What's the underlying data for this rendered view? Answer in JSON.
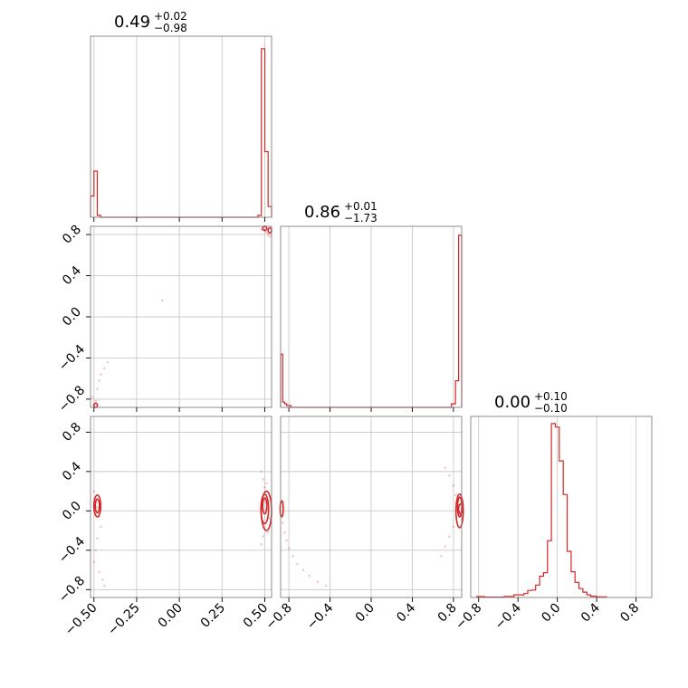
{
  "colors": {
    "series": "#d62728",
    "grid": "#c8c8c8",
    "frame": "#808080"
  },
  "chart_data": {
    "type": "corner",
    "titles": [
      {
        "value": "0.49",
        "plus": "+0.02",
        "minus": "−0.98"
      },
      {
        "value": "0.86",
        "plus": "+0.01",
        "minus": "−1.73"
      },
      {
        "value": "0.00",
        "plus": "+0.10",
        "minus": "−0.10"
      }
    ],
    "axes": [
      {
        "range": [
          -0.52,
          0.54
        ],
        "ticks": [
          -0.5,
          -0.25,
          0.0,
          0.25,
          0.5
        ],
        "tick_labels": [
          "−0.50",
          "−0.25",
          "0.00",
          "0.25",
          "0.50"
        ]
      },
      {
        "range": [
          -0.88,
          0.88
        ],
        "ticks": [
          -0.8,
          -0.4,
          0.0,
          0.4,
          0.8
        ],
        "tick_labels": [
          "−0.8",
          "−0.4",
          "0.0",
          "0.4",
          "0.8"
        ]
      },
      {
        "range": [
          -0.88,
          0.96
        ],
        "ticks": [
          -0.8,
          -0.4,
          0.0,
          0.4,
          0.8
        ],
        "tick_labels": [
          "−0.8",
          "−0.4",
          "0.0",
          "0.4",
          "0.8"
        ]
      }
    ],
    "histograms": [
      {
        "bins": [
          [
            -0.52,
            -0.5
          ],
          [
            -0.5,
            -0.48
          ],
          [
            -0.48,
            -0.46
          ],
          [
            -0.46,
            -0.44
          ],
          [
            -0.44,
            0.46
          ],
          [
            0.46,
            0.48
          ],
          [
            0.48,
            0.5
          ],
          [
            0.5,
            0.52
          ],
          [
            0.52,
            0.54
          ]
        ],
        "values": [
          0.12,
          0.26,
          0.01,
          0.0,
          0.0,
          0.01,
          0.95,
          0.37,
          0.06
        ]
      },
      {
        "bins": [
          [
            -0.88,
            -0.86
          ],
          [
            -0.86,
            -0.84
          ],
          [
            -0.84,
            -0.82
          ],
          [
            -0.82,
            -0.78
          ],
          [
            -0.78,
            0.78
          ],
          [
            0.78,
            0.82
          ],
          [
            0.82,
            0.85
          ],
          [
            0.85,
            0.88
          ]
        ],
        "values": [
          0.3,
          0.03,
          0.02,
          0.01,
          0.0,
          0.02,
          0.15,
          0.97
        ]
      },
      {
        "bins": [
          [
            -0.82,
            -0.74
          ],
          [
            -0.74,
            -0.54
          ],
          [
            -0.54,
            -0.44
          ],
          [
            -0.44,
            -0.34
          ],
          [
            -0.34,
            -0.3
          ],
          [
            -0.3,
            -0.26
          ],
          [
            -0.26,
            -0.22
          ],
          [
            -0.22,
            -0.18
          ],
          [
            -0.18,
            -0.14
          ],
          [
            -0.14,
            -0.1
          ],
          [
            -0.1,
            -0.06
          ],
          [
            -0.06,
            -0.02
          ],
          [
            -0.02,
            0.02
          ],
          [
            0.02,
            0.06
          ],
          [
            0.06,
            0.1
          ],
          [
            0.1,
            0.14
          ],
          [
            0.14,
            0.18
          ],
          [
            0.18,
            0.22
          ],
          [
            0.22,
            0.26
          ],
          [
            0.26,
            0.3
          ],
          [
            0.3,
            0.34
          ],
          [
            0.34,
            0.4
          ],
          [
            0.4,
            0.5
          ]
        ],
        "values": [
          0.005,
          0.002,
          0.006,
          0.015,
          0.022,
          0.04,
          0.042,
          0.07,
          0.12,
          0.14,
          0.32,
          0.98,
          0.96,
          0.77,
          0.58,
          0.26,
          0.145,
          0.085,
          0.05,
          0.03,
          0.015,
          0.007,
          0.003
        ]
      }
    ],
    "scatter_groups": [
      {
        "panel": [
          1,
          0
        ],
        "x": [
          0.49,
          0.5,
          0.51,
          0.52,
          0.5,
          0.53,
          0.48,
          -0.5,
          -0.49,
          -0.51,
          -0.48,
          -0.47,
          -0.46,
          -0.44,
          -0.42,
          -0.1
        ],
        "y": [
          0.86,
          0.84,
          0.82,
          0.8,
          0.88,
          0.78,
          0.85,
          -0.86,
          -0.82,
          -0.78,
          -0.7,
          -0.62,
          -0.56,
          -0.5,
          -0.44,
          0.16
        ]
      },
      {
        "panel": [
          2,
          0
        ],
        "x": [
          -0.5,
          -0.49,
          -0.48,
          -0.47,
          -0.46,
          -0.48,
          -0.49,
          -0.5,
          -0.47,
          -0.45,
          -0.44,
          0.48,
          0.49,
          0.5,
          0.51,
          0.52,
          0.53,
          0.5,
          0.49,
          0.48,
          0.51,
          0.52
        ],
        "y": [
          0.2,
          0.12,
          0.04,
          -0.06,
          -0.16,
          -0.28,
          -0.4,
          -0.52,
          -0.62,
          -0.7,
          -0.76,
          0.4,
          0.32,
          0.24,
          0.14,
          0.02,
          -0.08,
          -0.18,
          -0.26,
          -0.34,
          0.28,
          -0.22
        ]
      },
      {
        "panel": [
          2,
          1
        ],
        "x": [
          -0.86,
          -0.84,
          -0.82,
          -0.8,
          -0.76,
          -0.72,
          -0.66,
          -0.6,
          -0.52,
          -0.44,
          -0.86,
          0.72,
          0.76,
          0.8,
          0.82,
          0.84,
          0.86,
          0.8,
          0.76,
          0.72,
          0.68
        ],
        "y": [
          -0.12,
          -0.22,
          -0.3,
          -0.38,
          -0.46,
          -0.54,
          -0.6,
          -0.66,
          -0.72,
          -0.76,
          0.1,
          0.44,
          0.36,
          0.26,
          0.16,
          0.06,
          -0.04,
          -0.16,
          -0.26,
          -0.36,
          -0.46
        ]
      }
    ],
    "contour_groups": [
      {
        "panel": [
          1,
          0
        ],
        "ellipses": [
          {
            "cx": 0.5,
            "cy": 0.86,
            "rx": 0.012,
            "ry": 0.02
          },
          {
            "cx": 0.53,
            "cy": 0.84,
            "rx": 0.01,
            "ry": 0.025
          },
          {
            "cx": -0.49,
            "cy": -0.86,
            "rx": 0.01,
            "ry": 0.02
          }
        ]
      },
      {
        "panel": [
          2,
          0
        ],
        "ellipses": [
          {
            "cx": -0.48,
            "cy": 0.05,
            "rx": 0.012,
            "ry": 0.07
          },
          {
            "cx": -0.48,
            "cy": 0.05,
            "rx": 0.02,
            "ry": 0.11
          },
          {
            "cx": 0.5,
            "cy": 0.05,
            "rx": 0.012,
            "ry": 0.08
          },
          {
            "cx": 0.5,
            "cy": 0.02,
            "rx": 0.022,
            "ry": 0.15
          },
          {
            "cx": 0.51,
            "cy": 0.0,
            "rx": 0.03,
            "ry": 0.2
          }
        ]
      },
      {
        "panel": [
          2,
          1
        ],
        "ellipses": [
          {
            "cx": -0.87,
            "cy": 0.02,
            "rx": 0.015,
            "ry": 0.08
          },
          {
            "cx": 0.86,
            "cy": 0.04,
            "rx": 0.02,
            "ry": 0.1
          },
          {
            "cx": 0.86,
            "cy": 0.0,
            "rx": 0.035,
            "ry": 0.17
          },
          {
            "cx": 0.87,
            "cy": 0.02,
            "rx": 0.02,
            "ry": 0.05
          }
        ]
      }
    ]
  }
}
